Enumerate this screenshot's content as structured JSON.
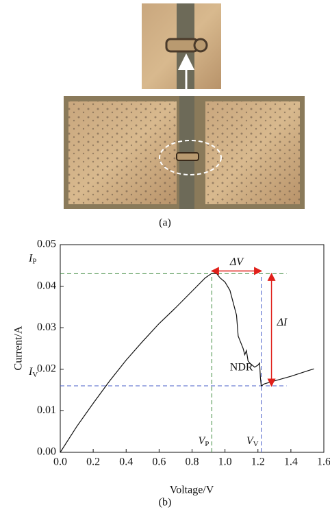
{
  "panel_labels": {
    "a": "(a)",
    "b": "(b)"
  },
  "chart_data": {
    "type": "line",
    "x_label": "Voltage/V",
    "y_label": "Current/A",
    "xlim": [
      0,
      1.6
    ],
    "ylim": [
      0,
      0.05
    ],
    "xticks": [
      {
        "value": 0,
        "label": "0.0"
      },
      0.2,
      0.4,
      0.6,
      0.8,
      {
        "value": 1,
        "label": "1.0"
      },
      1.2,
      1.4,
      1.6
    ],
    "yticks": [
      {
        "value": 0,
        "label": "0.00"
      },
      0.01,
      0.02,
      0.03,
      0.04,
      0.05
    ],
    "series": [
      {
        "color": "#111111",
        "x": [
          0,
          0.1,
          0.2,
          0.3,
          0.4,
          0.5,
          0.6,
          0.7,
          0.8,
          0.88,
          0.92,
          0.95,
          0.97,
          1.0,
          1.03,
          1.05,
          1.07,
          1.08,
          1.1,
          1.11,
          1.12,
          1.13,
          1.14,
          1.15,
          1.18,
          1.2,
          1.21,
          1.215,
          1.22,
          1.24,
          1.3,
          1.4,
          1.5,
          1.54
        ],
        "values": [
          0,
          0.0062,
          0.0118,
          0.0172,
          0.0222,
          0.0267,
          0.031,
          0.0348,
          0.0388,
          0.042,
          0.0431,
          0.043,
          0.042,
          0.041,
          0.039,
          0.036,
          0.033,
          0.028,
          0.026,
          0.025,
          0.0235,
          0.0245,
          0.022,
          0.0215,
          0.0205,
          0.021,
          0.0215,
          0.018,
          0.016,
          0.0165,
          0.0172,
          0.0183,
          0.0196,
          0.0201
        ]
      }
    ],
    "reference_lines": [
      {
        "x": 0.92,
        "y": 0.043,
        "color": "#3d8a3d"
      },
      {
        "x": 1.22,
        "y": 0.016,
        "color": "#4a5fc8"
      }
    ],
    "arrow_color": "#e0201a",
    "annotations": {
      "peak_current": {
        "text": "I",
        "sub": "P"
      },
      "valley_current": {
        "text": "I",
        "sub": "V"
      },
      "peak_voltage": {
        "text": "V",
        "sub": "P"
      },
      "valley_voltage": {
        "text": "V",
        "sub": "V"
      },
      "delta_v": "ΔV",
      "delta_i": "ΔI",
      "ndr": "NDR"
    }
  }
}
